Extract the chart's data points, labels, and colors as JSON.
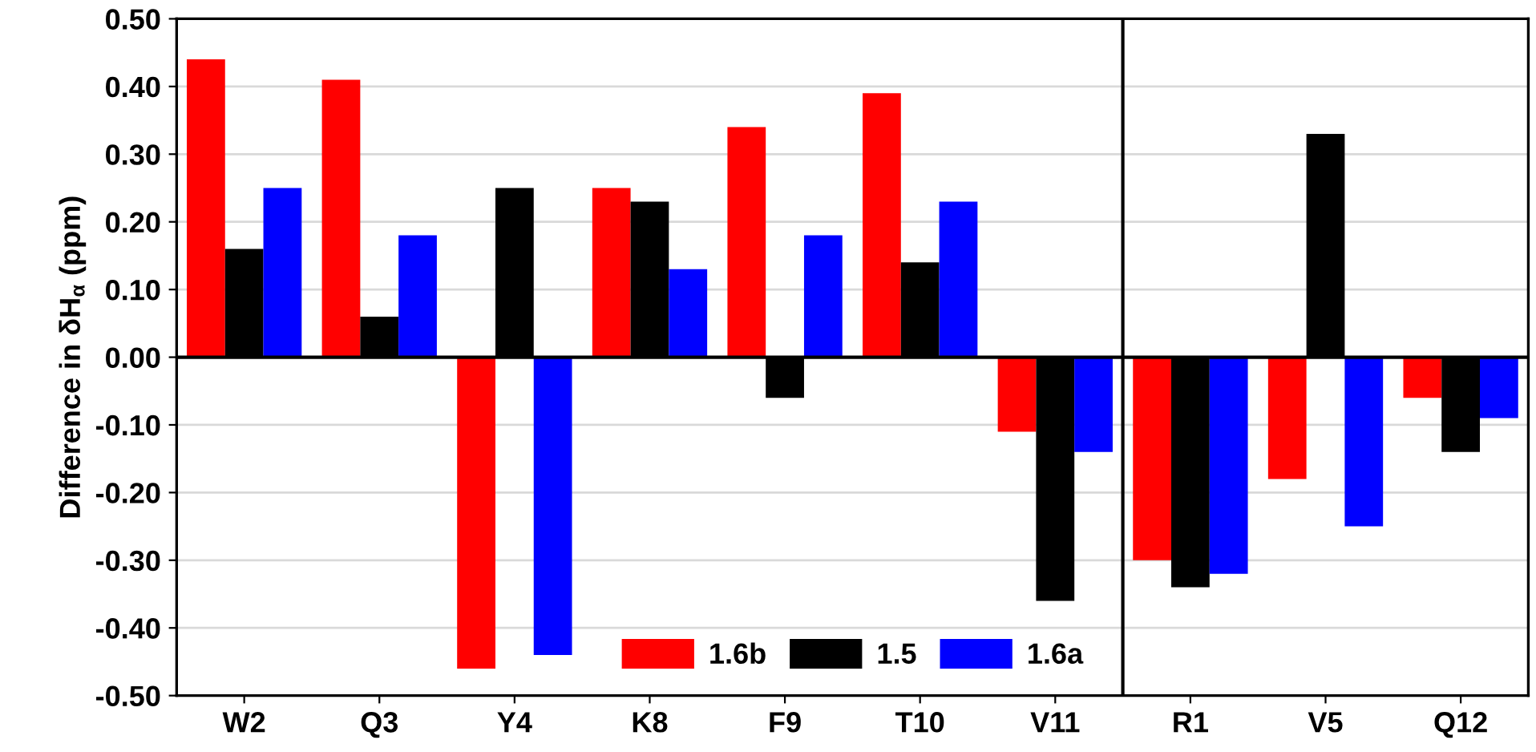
{
  "chart_data": {
    "type": "bar",
    "ylabel": "Difference in δH$_{α}$ (ppm)",
    "categories": [
      "W2",
      "Q3",
      "Y4",
      "K8",
      "F9",
      "T10",
      "V11",
      "R1",
      "V5",
      "Q12"
    ],
    "series": [
      {
        "name": "1.6b",
        "color": "#ff0000",
        "values": [
          0.44,
          0.41,
          -0.46,
          0.25,
          0.34,
          0.39,
          -0.11,
          -0.3,
          -0.18,
          -0.06
        ]
      },
      {
        "name": "1.5",
        "color": "#000000",
        "values": [
          0.16,
          0.06,
          0.25,
          0.23,
          -0.06,
          0.14,
          -0.36,
          -0.34,
          0.33,
          -0.14
        ]
      },
      {
        "name": "1.6a",
        "color": "#0000ff",
        "values": [
          0.25,
          0.18,
          -0.44,
          0.13,
          0.18,
          0.23,
          -0.14,
          -0.32,
          -0.25,
          -0.09
        ]
      }
    ],
    "ylim": [
      -0.5,
      0.5
    ],
    "yticks": [
      {
        "value": -0.5,
        "label": "-0.50"
      },
      {
        "value": -0.4,
        "label": "-0.40"
      },
      {
        "value": -0.3,
        "label": "-0.30"
      },
      {
        "value": -0.2,
        "label": "-0.20"
      },
      {
        "value": -0.1,
        "label": "-0.10"
      },
      {
        "value": 0,
        "label": "0.00"
      },
      {
        "value": 0.1,
        "label": "0.10"
      },
      {
        "value": 0.2,
        "label": "0.20"
      },
      {
        "value": 0.3,
        "label": "0.30"
      },
      {
        "value": 0.4,
        "label": "0.40"
      },
      {
        "value": 0.5,
        "label": "0.50"
      }
    ],
    "grid": "y",
    "legend": "bottom"
  }
}
